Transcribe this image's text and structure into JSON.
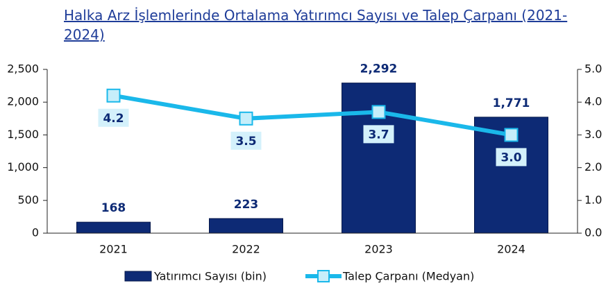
{
  "chart_data": {
    "type": "bar",
    "title": "Halka Arz İşlemlerinde Ortalama Yatırımcı Sayısı ve Talep Çarpanı (2021-2024)",
    "categories": [
      "2021",
      "2022",
      "2023",
      "2024"
    ],
    "series": [
      {
        "name": "Yatırımcı Sayısı (bin)",
        "type": "bar",
        "color": "#0d2a75",
        "values": [
          168,
          223,
          2292,
          1771
        ],
        "value_labels": [
          "168",
          "223",
          "2,292",
          "1,771"
        ]
      },
      {
        "name": "Talep Çarpanı (Medyan)",
        "type": "line",
        "axis": "y2",
        "color": "#1ab8ea",
        "values": [
          4.2,
          3.5,
          3.7,
          3.0
        ],
        "value_labels": [
          "4.2",
          "3.5",
          "3.7",
          "3.0"
        ]
      }
    ],
    "ylim": [
      0,
      2500
    ],
    "yticks": [
      0,
      500,
      {
        "value": 1000,
        "label": "1,000"
      },
      {
        "value": 1500,
        "label": "1,500"
      },
      {
        "value": 2000,
        "label": "2,000"
      },
      {
        "value": 2500,
        "label": "2,500"
      }
    ],
    "y2lim": [
      0,
      5
    ],
    "y2ticks": [
      {
        "value": 0,
        "label": "0.0"
      },
      {
        "value": 1,
        "label": "1.0"
      },
      {
        "value": 2,
        "label": "2.0"
      },
      {
        "value": 3,
        "label": "3.0"
      },
      {
        "value": 4,
        "label": "4.0"
      },
      {
        "value": 5,
        "label": "5.0"
      }
    ],
    "legend": "bottom"
  }
}
